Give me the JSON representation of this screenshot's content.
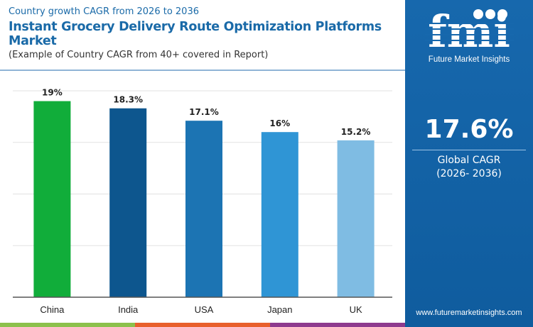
{
  "header": {
    "subtitle": "Country growth CAGR from 2026 to 2036",
    "title": "Instant Grocery Delivery Route Optimization Platforms Market",
    "note": "(Example of Country CAGR from 40+ covered in Report)"
  },
  "brand": {
    "logo_text": "fmi",
    "name": "Future Market Insights",
    "url": "www.futuremarketinsights.com"
  },
  "summary": {
    "value": "17.6%",
    "label": "Global CAGR",
    "period": "(2026- 2036)"
  },
  "colors": {
    "panel": "#1768ad",
    "title": "#1a6aa8",
    "strip": [
      "#8cc14c",
      "#e8602c",
      "#8e3a8e"
    ]
  },
  "chart_data": {
    "type": "bar",
    "categories": [
      "China",
      "India",
      "USA",
      "Japan",
      "UK"
    ],
    "values": [
      19,
      18.3,
      17.1,
      16,
      15.2
    ],
    "data_labels": [
      "19%",
      "18.3%",
      "17.1%",
      "16%",
      "15.2%"
    ],
    "colors": [
      "#11ad3a",
      "#0d568e",
      "#1c74b3",
      "#2f95d5",
      "#7fbce3"
    ],
    "ylim": [
      0,
      20
    ],
    "grid": true,
    "xlabel": "",
    "ylabel": ""
  }
}
